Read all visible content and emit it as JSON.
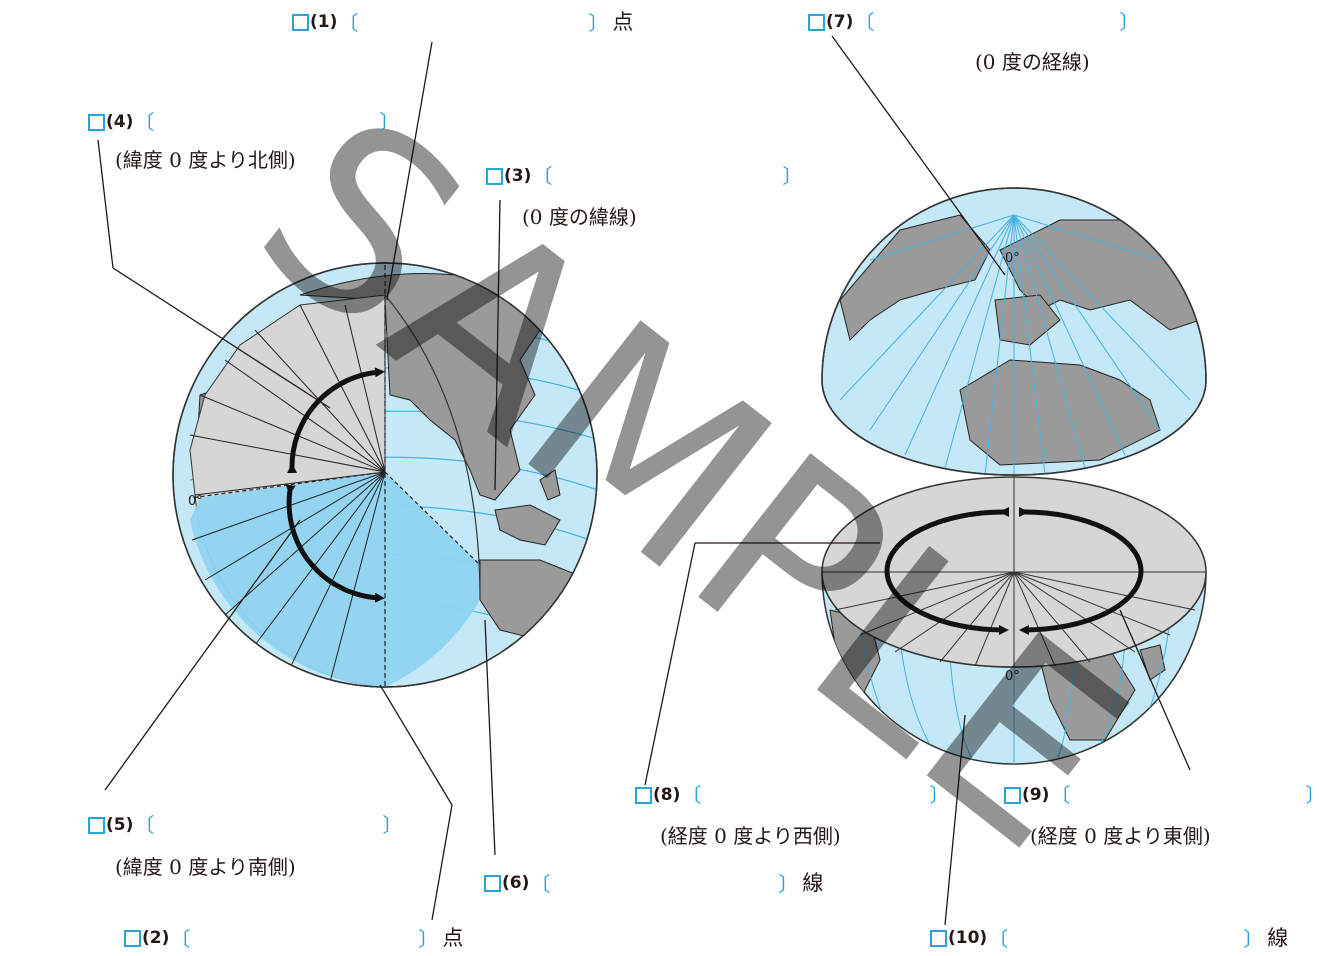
{
  "labels": {
    "q1": {
      "num": "(1)",
      "suffix": "点"
    },
    "q2": {
      "num": "(2)",
      "suffix": "点"
    },
    "q3": {
      "num": "(3)",
      "suffix": "",
      "note": "(0 度の緯線)"
    },
    "q4": {
      "num": "(4)",
      "suffix": "",
      "note": "(緯度 0 度より北側)"
    },
    "q5": {
      "num": "(5)",
      "suffix": "",
      "note": "(緯度 0 度より南側)"
    },
    "q6": {
      "num": "(6)",
      "suffix": "線"
    },
    "q7": {
      "num": "(7)",
      "suffix": "",
      "note": "(0 度の経線)"
    },
    "q8": {
      "num": "(8)",
      "suffix": "",
      "note": "(経度 0 度より西側)"
    },
    "q9": {
      "num": "(9)",
      "suffix": "",
      "note": "(経度 0 度より東側)"
    },
    "q10": {
      "num": "(10)",
      "suffix": "線"
    }
  },
  "degree_labels": {
    "lat_zero": "0°",
    "lon_zero_top": "0°",
    "lon_zero_bottom": "0°"
  },
  "watermark": "SAMPLE",
  "colors": {
    "ocean": "#c5e8f7",
    "land": "#9a9a9a",
    "cut_face": "#d6d6d6",
    "cut_south": "#8fd4f2",
    "line": "#42b3e3",
    "accent": "#29a3d6"
  }
}
